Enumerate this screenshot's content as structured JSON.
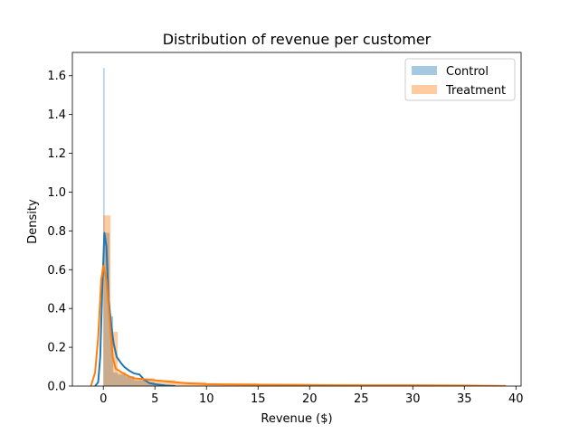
{
  "chart_data": {
    "type": "histogram_kde",
    "title": "Distribution of revenue per customer",
    "xlabel": "Revenue ($)",
    "ylabel": "Density",
    "xlim": [
      -3,
      40.5
    ],
    "ylim": [
      0,
      1.72
    ],
    "xticks": [
      0,
      5,
      10,
      15,
      20,
      25,
      30,
      35,
      40
    ],
    "yticks": [
      0.0,
      0.2,
      0.4,
      0.6,
      0.8,
      1.0,
      1.2,
      1.4,
      1.6
    ],
    "legend_position": "top-right",
    "series": [
      {
        "name": "Control",
        "color": "#1f77b4",
        "bars": [
          {
            "x0": 0.0,
            "x1": 0.12,
            "density": 1.64
          },
          {
            "x0": 0.12,
            "x1": 0.6,
            "density": 0.79
          },
          {
            "x0": 0.6,
            "x1": 0.95,
            "density": 0.36
          },
          {
            "x0": 0.95,
            "x1": 1.4,
            "density": 0.07
          },
          {
            "x0": 1.4,
            "x1": 2.2,
            "density": 0.06
          },
          {
            "x0": 2.2,
            "x1": 3.0,
            "density": 0.05
          },
          {
            "x0": 3.0,
            "x1": 4.0,
            "density": 0.03
          },
          {
            "x0": 4.0,
            "x1": 5.0,
            "density": 0.02
          },
          {
            "x0": 5.0,
            "x1": 6.0,
            "density": 0.01
          }
        ],
        "kde": [
          [
            -0.8,
            0.0
          ],
          [
            -0.5,
            0.02
          ],
          [
            -0.3,
            0.15
          ],
          [
            -0.1,
            0.5
          ],
          [
            0.1,
            0.79
          ],
          [
            0.3,
            0.72
          ],
          [
            0.5,
            0.45
          ],
          [
            0.8,
            0.3
          ],
          [
            1.0,
            0.22
          ],
          [
            1.3,
            0.15
          ],
          [
            1.7,
            0.12
          ],
          [
            2.0,
            0.1
          ],
          [
            2.5,
            0.08
          ],
          [
            3.0,
            0.065
          ],
          [
            3.5,
            0.06
          ],
          [
            4.0,
            0.03
          ],
          [
            4.5,
            0.015
          ],
          [
            5.0,
            0.01
          ],
          [
            6.0,
            0.003
          ],
          [
            7.0,
            0.0
          ]
        ]
      },
      {
        "name": "Treatment",
        "color": "#ff7f0e",
        "bars": [
          {
            "x0": 0.0,
            "x1": 0.7,
            "density": 0.88
          },
          {
            "x0": 0.7,
            "x1": 1.4,
            "density": 0.28
          },
          {
            "x0": 1.4,
            "x1": 2.2,
            "density": 0.07
          },
          {
            "x0": 2.2,
            "x1": 3.0,
            "density": 0.05
          },
          {
            "x0": 3.0,
            "x1": 4.0,
            "density": 0.04
          },
          {
            "x0": 4.0,
            "x1": 5.0,
            "density": 0.04
          },
          {
            "x0": 5.0,
            "x1": 7.0,
            "density": 0.03
          },
          {
            "x0": 7.0,
            "x1": 10.0,
            "density": 0.02
          },
          {
            "x0": 10.0,
            "x1": 15.0,
            "density": 0.015
          },
          {
            "x0": 15.0,
            "x1": 20.0,
            "density": 0.012
          },
          {
            "x0": 20.0,
            "x1": 25.0,
            "density": 0.01
          },
          {
            "x0": 25.0,
            "x1": 30.0,
            "density": 0.008
          },
          {
            "x0": 30.0,
            "x1": 39.0,
            "density": 0.006
          }
        ],
        "kde": [
          [
            -1.2,
            0.0
          ],
          [
            -0.8,
            0.07
          ],
          [
            -0.5,
            0.25
          ],
          [
            -0.2,
            0.55
          ],
          [
            0.0,
            0.62
          ],
          [
            0.3,
            0.55
          ],
          [
            0.6,
            0.35
          ],
          [
            0.9,
            0.15
          ],
          [
            1.2,
            0.09
          ],
          [
            1.8,
            0.07
          ],
          [
            2.5,
            0.05
          ],
          [
            3.0,
            0.04
          ],
          [
            4.0,
            0.035
          ],
          [
            5.0,
            0.03
          ],
          [
            6.0,
            0.025
          ],
          [
            7.0,
            0.02
          ],
          [
            8.0,
            0.015
          ],
          [
            10.0,
            0.01
          ],
          [
            12.0,
            0.008
          ],
          [
            15.0,
            0.007
          ],
          [
            18.0,
            0.006
          ],
          [
            20.0,
            0.005
          ],
          [
            25.0,
            0.004
          ],
          [
            30.0,
            0.004
          ],
          [
            35.0,
            0.003
          ],
          [
            39.0,
            0.0
          ]
        ]
      }
    ]
  }
}
